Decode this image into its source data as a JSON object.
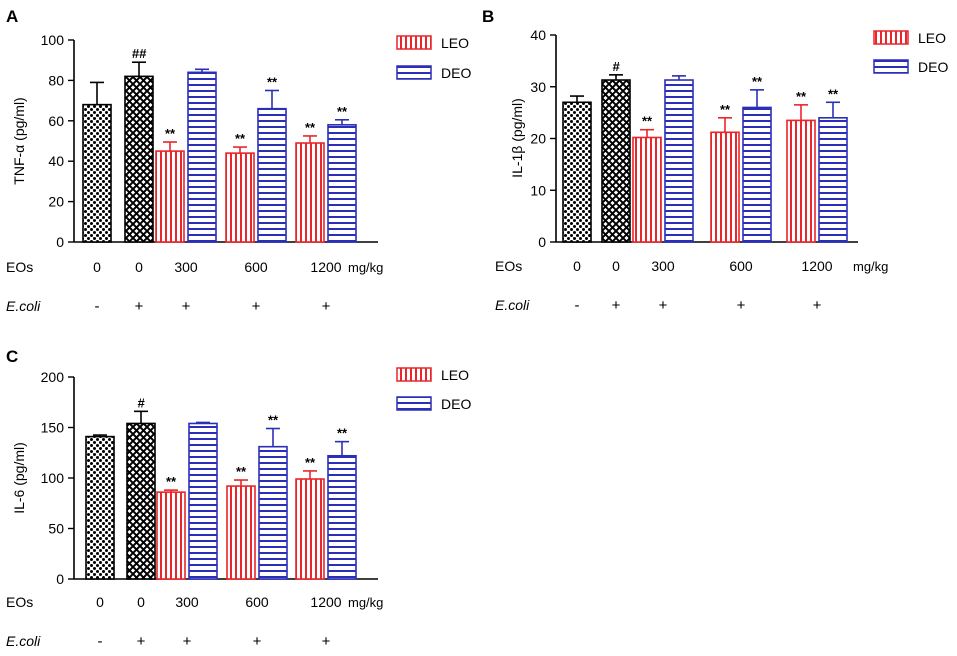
{
  "figure": {
    "panels": [
      "A",
      "B",
      "C"
    ],
    "colors": {
      "legend_leo": "#e8262b",
      "legend_deo": "#2b2fb8",
      "axis": "#000000"
    }
  },
  "chart_data": [
    {
      "panel": "A",
      "type": "bar",
      "ylabel": "TNF-α (pg/ml)",
      "ylim": [
        0,
        100
      ],
      "yticks": [
        0,
        20,
        40,
        60,
        80,
        100
      ],
      "row_labels": {
        "dose": "EOs",
        "unit": "mg/kg",
        "ecoli": "E.coli"
      },
      "groups": [
        {
          "dose": "0",
          "ecoli": "-"
        },
        {
          "dose": "0",
          "ecoli": "+"
        },
        {
          "dose": "300",
          "ecoli": "+"
        },
        {
          "dose": "600",
          "ecoli": "+"
        },
        {
          "dose": "1200",
          "ecoli": "+"
        }
      ],
      "legend": [
        "LEO",
        "DEO"
      ],
      "bars": [
        {
          "series": "control",
          "group": 0,
          "value": 68,
          "err": 11,
          "label": ""
        },
        {
          "series": "model",
          "group": 1,
          "value": 82,
          "err": 7,
          "label": "##"
        },
        {
          "series": "LEO",
          "group": 2,
          "value": 45,
          "err": 4.5,
          "label": "**"
        },
        {
          "series": "DEO",
          "group": 2,
          "value": 84,
          "err": 1.5,
          "label": ""
        },
        {
          "series": "LEO",
          "group": 3,
          "value": 44,
          "err": 3,
          "label": "**"
        },
        {
          "series": "DEO",
          "group": 3,
          "value": 66,
          "err": 9,
          "label": "**"
        },
        {
          "series": "LEO",
          "group": 4,
          "value": 49,
          "err": 3.5,
          "label": "**"
        },
        {
          "series": "DEO",
          "group": 4,
          "value": 58,
          "err": 2.5,
          "label": "**"
        }
      ]
    },
    {
      "panel": "B",
      "type": "bar",
      "ylabel": "IL-1β (pg/ml)",
      "ylim": [
        0,
        40
      ],
      "yticks": [
        0,
        10,
        20,
        30,
        40
      ],
      "row_labels": {
        "dose": "EOs",
        "unit": "mg/kg",
        "ecoli": "E.coli"
      },
      "groups": [
        {
          "dose": "0",
          "ecoli": "-"
        },
        {
          "dose": "0",
          "ecoli": "+"
        },
        {
          "dose": "300",
          "ecoli": "+"
        },
        {
          "dose": "600",
          "ecoli": "+"
        },
        {
          "dose": "1200",
          "ecoli": "+"
        }
      ],
      "legend": [
        "LEO",
        "DEO"
      ],
      "bars": [
        {
          "series": "control",
          "group": 0,
          "value": 27,
          "err": 1.2,
          "label": ""
        },
        {
          "series": "model",
          "group": 1,
          "value": 31.3,
          "err": 1,
          "label": "#"
        },
        {
          "series": "LEO",
          "group": 2,
          "value": 20.2,
          "err": 1.5,
          "label": "**"
        },
        {
          "series": "DEO",
          "group": 2,
          "value": 31.3,
          "err": 0.8,
          "label": ""
        },
        {
          "series": "LEO",
          "group": 3,
          "value": 21.2,
          "err": 2.8,
          "label": "**"
        },
        {
          "series": "DEO",
          "group": 3,
          "value": 26,
          "err": 3.4,
          "label": "**"
        },
        {
          "series": "LEO",
          "group": 4,
          "value": 23.5,
          "err": 3,
          "label": "**"
        },
        {
          "series": "DEO",
          "group": 4,
          "value": 24,
          "err": 3,
          "label": "**"
        }
      ]
    },
    {
      "panel": "C",
      "type": "bar",
      "ylabel": "IL-6 (pg/ml)",
      "ylim": [
        0,
        200
      ],
      "yticks": [
        0,
        50,
        100,
        150,
        200
      ],
      "row_labels": {
        "dose": "EOs",
        "unit": "mg/kg",
        "ecoli": "E.coli"
      },
      "groups": [
        {
          "dose": "0",
          "ecoli": "-"
        },
        {
          "dose": "0",
          "ecoli": "+"
        },
        {
          "dose": "300",
          "ecoli": "+"
        },
        {
          "dose": "600",
          "ecoli": "+"
        },
        {
          "dose": "1200",
          "ecoli": "+"
        }
      ],
      "legend": [
        "LEO",
        "DEO"
      ],
      "bars": [
        {
          "series": "control",
          "group": 0,
          "value": 141,
          "err": 1.5,
          "label": ""
        },
        {
          "series": "model",
          "group": 1,
          "value": 154,
          "err": 12,
          "label": "#"
        },
        {
          "series": "LEO",
          "group": 2,
          "value": 86,
          "err": 2,
          "label": "**"
        },
        {
          "series": "DEO",
          "group": 2,
          "value": 154,
          "err": 1,
          "label": ""
        },
        {
          "series": "LEO",
          "group": 3,
          "value": 92,
          "err": 6,
          "label": "**"
        },
        {
          "series": "DEO",
          "group": 3,
          "value": 131,
          "err": 18,
          "label": "**"
        },
        {
          "series": "LEO",
          "group": 4,
          "value": 99,
          "err": 8,
          "label": "**"
        },
        {
          "series": "DEO",
          "group": 4,
          "value": 122,
          "err": 14,
          "label": "**"
        }
      ]
    }
  ]
}
